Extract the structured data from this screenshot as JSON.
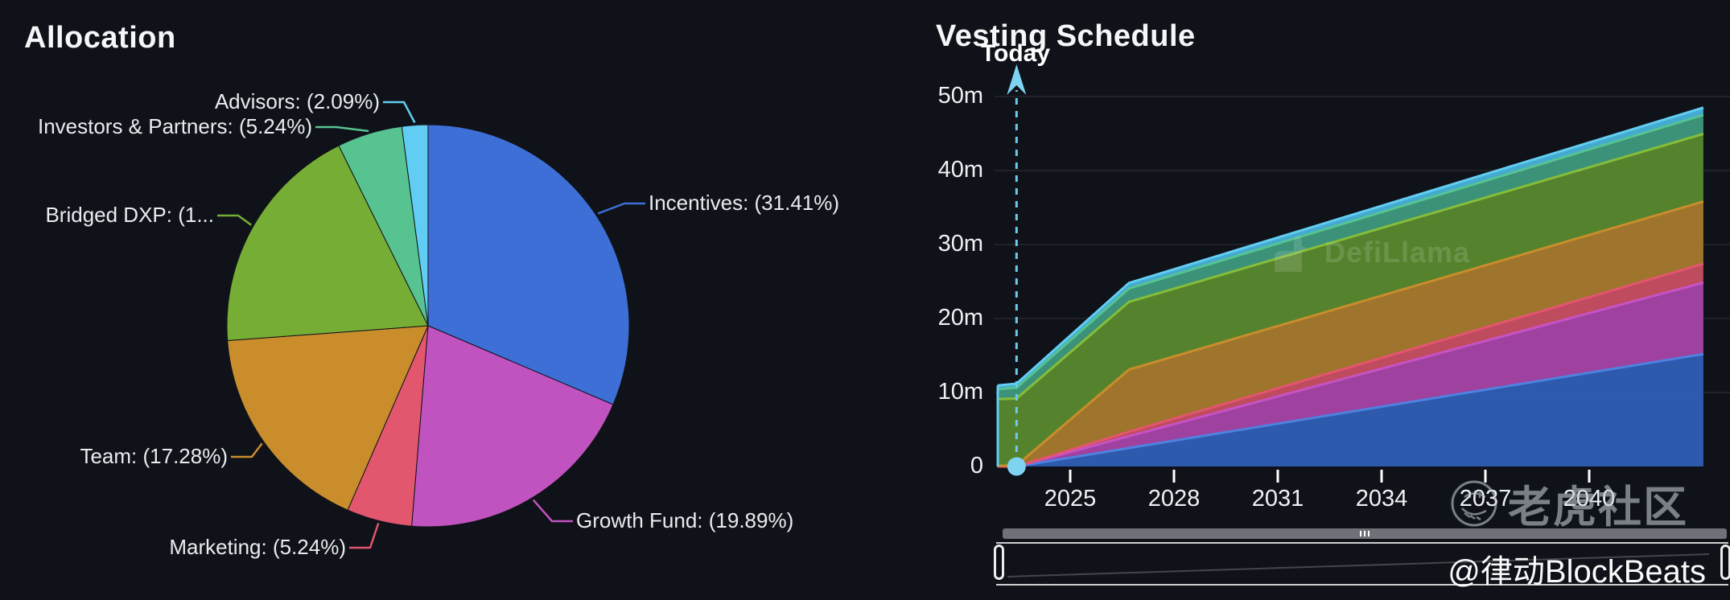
{
  "watermarks": {
    "defillama": "DefiLlama",
    "tiger": "老虎社区",
    "blockbeats": "@律动BlockBeats"
  },
  "chart_data": [
    {
      "type": "pie",
      "title": "Allocation",
      "order": "clockwise-from-top",
      "slices": [
        {
          "id": "incentives",
          "label": "Incentives",
          "value": 31.41,
          "display": "Incentives: (31.41%)",
          "color": "#3e6fd6"
        },
        {
          "id": "growth_fund",
          "label": "Growth Fund",
          "value": 19.89,
          "display": "Growth Fund: (19.89%)",
          "color": "#c153c1"
        },
        {
          "id": "marketing",
          "label": "Marketing",
          "value": 5.24,
          "display": "Marketing: (5.24%)",
          "color": "#e2566e"
        },
        {
          "id": "team",
          "label": "Team",
          "value": 17.28,
          "display": "Team: (17.28%)",
          "color": "#c98d2c"
        },
        {
          "id": "bridged_dxp",
          "label": "Bridged DXP",
          "value": 18.85,
          "display": "Bridged DXP: (1...",
          "color": "#76ad35"
        },
        {
          "id": "investors",
          "label": "Investors & Partners",
          "value": 5.24,
          "display": "Investors & Partners: (5.24%)",
          "color": "#56c391"
        },
        {
          "id": "advisors",
          "label": "Advisors",
          "value": 2.09,
          "display": "Advisors: (2.09%)",
          "color": "#62cdf2"
        }
      ]
    },
    {
      "type": "area",
      "stacked": true,
      "title": "Vesting Schedule",
      "unit": "m",
      "ylim": [
        0,
        50
      ],
      "x": [
        2022.9,
        2023.45,
        2026.7,
        2043.3
      ],
      "series": [
        {
          "id": "incentives",
          "name": "Incentives",
          "values": [
            0,
            0,
            2.5,
            15.2
          ],
          "fill": "#305fb5",
          "stroke": "#4d82e0"
        },
        {
          "id": "growth_fund",
          "name": "Growth Fund",
          "values": [
            0,
            0,
            1.6,
            9.65
          ],
          "fill": "#a845a5",
          "stroke": "#c653c6"
        },
        {
          "id": "marketing",
          "name": "Marketing",
          "values": [
            0,
            0,
            0.6,
            2.55
          ],
          "fill": "#c94f62",
          "stroke": "#e2566e"
        },
        {
          "id": "team",
          "name": "Team",
          "values": [
            0.1,
            0.15,
            8.4,
            8.4
          ],
          "fill": "#a87a2e",
          "stroke": "#c98d2c"
        },
        {
          "id": "bridged_dxp",
          "name": "Bridged DXP",
          "values": [
            9.0,
            9.05,
            9.15,
            9.15
          ],
          "fill": "#5a8a2e",
          "stroke": "#86bd3a"
        },
        {
          "id": "investors",
          "name": "Investors & Partners",
          "values": [
            1.35,
            1.45,
            1.8,
            2.55
          ],
          "fill": "#3f9a7d",
          "stroke": "#56c391"
        },
        {
          "id": "advisors",
          "name": "Advisors",
          "values": [
            0.5,
            0.55,
            0.75,
            1.0
          ],
          "fill": "#49b3da",
          "stroke": "#62cdf2"
        }
      ],
      "x_ticks": [
        {
          "x": 2025,
          "label": "2025"
        },
        {
          "x": 2028,
          "label": "2028"
        },
        {
          "x": 2031,
          "label": "2031"
        },
        {
          "x": 2034,
          "label": "2034"
        },
        {
          "x": 2037,
          "label": "2037"
        },
        {
          "x": 2040,
          "label": "2040"
        }
      ],
      "y_ticks": [
        {
          "v": 0,
          "label": "0"
        },
        {
          "v": 10,
          "label": "10m"
        },
        {
          "v": 20,
          "label": "20m"
        },
        {
          "v": 30,
          "label": "30m"
        },
        {
          "v": 40,
          "label": "40m"
        },
        {
          "v": 50,
          "label": "50m"
        }
      ],
      "today": {
        "label": "Today",
        "x": 2023.45
      }
    }
  ]
}
